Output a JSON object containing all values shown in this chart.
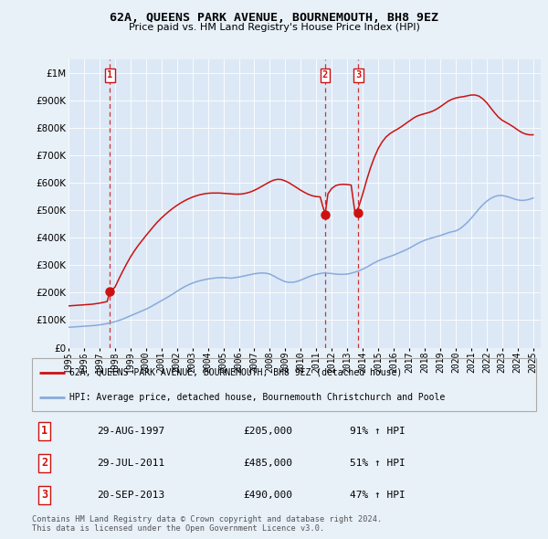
{
  "title": "62A, QUEENS PARK AVENUE, BOURNEMOUTH, BH8 9EZ",
  "subtitle": "Price paid vs. HM Land Registry's House Price Index (HPI)",
  "background_color": "#e8f0f8",
  "plot_bg_color": "#dce8f5",
  "legend_label_red": "62A, QUEENS PARK AVENUE, BOURNEMOUTH, BH8 9EZ (detached house)",
  "legend_label_blue": "HPI: Average price, detached house, Bournemouth Christchurch and Poole",
  "footer": "Contains HM Land Registry data © Crown copyright and database right 2024.\nThis data is licensed under the Open Government Licence v3.0.",
  "transactions": [
    {
      "label": "1",
      "date": "29-AUG-1997",
      "price": 205000,
      "hpi_pct": "91% ↑ HPI",
      "x": 1997.66
    },
    {
      "label": "2",
      "date": "29-JUL-2011",
      "price": 485000,
      "hpi_pct": "51% ↑ HPI",
      "x": 2011.57
    },
    {
      "label": "3",
      "date": "20-SEP-2013",
      "price": 490000,
      "hpi_pct": "47% ↑ HPI",
      "x": 2013.72
    }
  ],
  "hpi_line_x": [
    1995.0,
    1995.25,
    1995.5,
    1995.75,
    1996.0,
    1996.25,
    1996.5,
    1996.75,
    1997.0,
    1997.25,
    1997.5,
    1997.75,
    1998.0,
    1998.25,
    1998.5,
    1998.75,
    1999.0,
    1999.25,
    1999.5,
    1999.75,
    2000.0,
    2000.25,
    2000.5,
    2000.75,
    2001.0,
    2001.25,
    2001.5,
    2001.75,
    2002.0,
    2002.25,
    2002.5,
    2002.75,
    2003.0,
    2003.25,
    2003.5,
    2003.75,
    2004.0,
    2004.25,
    2004.5,
    2004.75,
    2005.0,
    2005.25,
    2005.5,
    2005.75,
    2006.0,
    2006.25,
    2006.5,
    2006.75,
    2007.0,
    2007.25,
    2007.5,
    2007.75,
    2008.0,
    2008.25,
    2008.5,
    2008.75,
    2009.0,
    2009.25,
    2009.5,
    2009.75,
    2010.0,
    2010.25,
    2010.5,
    2010.75,
    2011.0,
    2011.25,
    2011.5,
    2011.75,
    2012.0,
    2012.25,
    2012.5,
    2012.75,
    2013.0,
    2013.25,
    2013.5,
    2013.75,
    2014.0,
    2014.25,
    2014.5,
    2014.75,
    2015.0,
    2015.25,
    2015.5,
    2015.75,
    2016.0,
    2016.25,
    2016.5,
    2016.75,
    2017.0,
    2017.25,
    2017.5,
    2017.75,
    2018.0,
    2018.25,
    2018.5,
    2018.75,
    2019.0,
    2019.25,
    2019.5,
    2019.75,
    2020.0,
    2020.25,
    2020.5,
    2020.75,
    2021.0,
    2021.25,
    2021.5,
    2021.75,
    2022.0,
    2022.25,
    2022.5,
    2022.75,
    2023.0,
    2023.25,
    2023.5,
    2023.75,
    2024.0,
    2024.25,
    2024.5,
    2024.75,
    2025.0
  ],
  "hpi_line_y": [
    74000,
    75000,
    76000,
    77000,
    78000,
    79000,
    80000,
    81000,
    83000,
    85000,
    88000,
    91000,
    95000,
    99000,
    104000,
    110000,
    116000,
    122000,
    128000,
    134000,
    140000,
    147000,
    155000,
    163000,
    171000,
    179000,
    187000,
    196000,
    205000,
    214000,
    222000,
    229000,
    235000,
    240000,
    244000,
    247000,
    250000,
    252000,
    254000,
    255000,
    255000,
    254000,
    253000,
    255000,
    257000,
    260000,
    263000,
    266000,
    269000,
    271000,
    272000,
    271000,
    268000,
    261000,
    253000,
    246000,
    240000,
    238000,
    238000,
    241000,
    246000,
    252000,
    258000,
    263000,
    267000,
    270000,
    272000,
    271000,
    270000,
    268000,
    267000,
    267000,
    268000,
    271000,
    275000,
    280000,
    286000,
    293000,
    301000,
    309000,
    316000,
    322000,
    327000,
    332000,
    337000,
    343000,
    349000,
    355000,
    362000,
    370000,
    378000,
    385000,
    391000,
    396000,
    400000,
    404000,
    408000,
    413000,
    418000,
    422000,
    425000,
    432000,
    443000,
    456000,
    471000,
    488000,
    505000,
    520000,
    533000,
    543000,
    550000,
    554000,
    554000,
    551000,
    547000,
    542000,
    538000,
    536000,
    537000,
    540000,
    545000
  ],
  "red_line_x": [
    1995.0,
    1995.25,
    1995.5,
    1995.75,
    1996.0,
    1996.25,
    1996.5,
    1996.75,
    1997.0,
    1997.25,
    1997.5,
    1997.66,
    1998.0,
    1998.25,
    1998.5,
    1998.75,
    1999.0,
    1999.25,
    1999.5,
    1999.75,
    2000.0,
    2000.25,
    2000.5,
    2000.75,
    2001.0,
    2001.25,
    2001.5,
    2001.75,
    2002.0,
    2002.25,
    2002.5,
    2002.75,
    2003.0,
    2003.25,
    2003.5,
    2003.75,
    2004.0,
    2004.25,
    2004.5,
    2004.75,
    2005.0,
    2005.25,
    2005.5,
    2005.75,
    2006.0,
    2006.25,
    2006.5,
    2006.75,
    2007.0,
    2007.25,
    2007.5,
    2007.75,
    2008.0,
    2008.25,
    2008.5,
    2008.75,
    2009.0,
    2009.25,
    2009.5,
    2009.75,
    2010.0,
    2010.25,
    2010.5,
    2010.75,
    2011.0,
    2011.25,
    2011.57,
    2011.75,
    2012.0,
    2012.25,
    2012.5,
    2012.75,
    2013.0,
    2013.25,
    2013.5,
    2013.72,
    2014.0,
    2014.25,
    2014.5,
    2014.75,
    2015.0,
    2015.25,
    2015.5,
    2015.75,
    2016.0,
    2016.25,
    2016.5,
    2016.75,
    2017.0,
    2017.25,
    2017.5,
    2017.75,
    2018.0,
    2018.25,
    2018.5,
    2018.75,
    2019.0,
    2019.25,
    2019.5,
    2019.75,
    2020.0,
    2020.25,
    2020.5,
    2020.75,
    2021.0,
    2021.25,
    2021.5,
    2021.75,
    2022.0,
    2022.25,
    2022.5,
    2022.75,
    2023.0,
    2023.25,
    2023.5,
    2023.75,
    2024.0,
    2024.25,
    2024.5,
    2024.75,
    2025.0
  ],
  "red_line_y": [
    152000,
    153000,
    154000,
    155000,
    156000,
    157000,
    158000,
    160000,
    162000,
    165000,
    168000,
    205000,
    220000,
    250000,
    278000,
    305000,
    330000,
    352000,
    372000,
    390000,
    408000,
    425000,
    442000,
    458000,
    472000,
    485000,
    497000,
    508000,
    518000,
    527000,
    535000,
    542000,
    548000,
    553000,
    557000,
    560000,
    562000,
    563000,
    563000,
    563000,
    562000,
    561000,
    560000,
    559000,
    559000,
    560000,
    563000,
    567000,
    573000,
    580000,
    588000,
    596000,
    604000,
    610000,
    613000,
    612000,
    607000,
    600000,
    591000,
    582000,
    573000,
    565000,
    558000,
    553000,
    550000,
    549000,
    485000,
    560000,
    580000,
    590000,
    594000,
    595000,
    594000,
    592000,
    490000,
    510000,
    560000,
    610000,
    655000,
    693000,
    725000,
    749000,
    767000,
    779000,
    788000,
    796000,
    805000,
    815000,
    825000,
    835000,
    843000,
    848000,
    852000,
    856000,
    861000,
    868000,
    877000,
    887000,
    897000,
    904000,
    909000,
    912000,
    914000,
    917000,
    920000,
    920000,
    916000,
    906000,
    892000,
    874000,
    856000,
    840000,
    828000,
    820000,
    812000,
    803000,
    793000,
    784000,
    778000,
    775000,
    775000
  ],
  "ylim": [
    0,
    1050000
  ],
  "xlim": [
    1995,
    2025.5
  ],
  "yticks": [
    0,
    100000,
    200000,
    300000,
    400000,
    500000,
    600000,
    700000,
    800000,
    900000,
    1000000
  ],
  "xticks": [
    1995,
    1996,
    1997,
    1998,
    1999,
    2000,
    2001,
    2002,
    2003,
    2004,
    2005,
    2006,
    2007,
    2008,
    2009,
    2010,
    2011,
    2012,
    2013,
    2014,
    2015,
    2016,
    2017,
    2018,
    2019,
    2020,
    2021,
    2022,
    2023,
    2024,
    2025
  ],
  "red_color": "#cc1111",
  "blue_color": "#88aadd",
  "grid_color": "#ffffff",
  "title_fontsize": 9.5,
  "subtitle_fontsize": 8,
  "tick_fontsize": 7,
  "ytick_fontsize": 7.5
}
